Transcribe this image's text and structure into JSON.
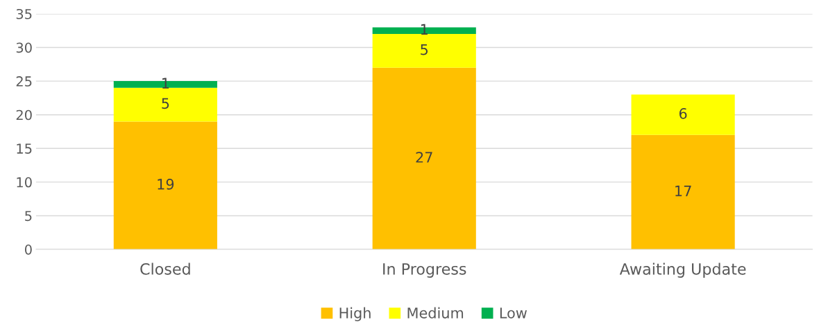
{
  "chart_data": {
    "type": "bar",
    "stacked": true,
    "categories": [
      "Closed",
      "In Progress",
      "Awaiting Update"
    ],
    "series": [
      {
        "name": "High",
        "color": "#ffc000",
        "values": [
          19,
          27,
          17
        ]
      },
      {
        "name": "Medium",
        "color": "#ffff00",
        "values": [
          5,
          5,
          6
        ]
      },
      {
        "name": "Low",
        "color": "#00b050",
        "values": [
          1,
          1,
          null
        ]
      }
    ],
    "ylim": [
      0,
      35
    ],
    "yticks": [
      0,
      5,
      10,
      15,
      20,
      25,
      30,
      35
    ],
    "grid": "y",
    "legend": "bottom",
    "data_labels": true
  }
}
